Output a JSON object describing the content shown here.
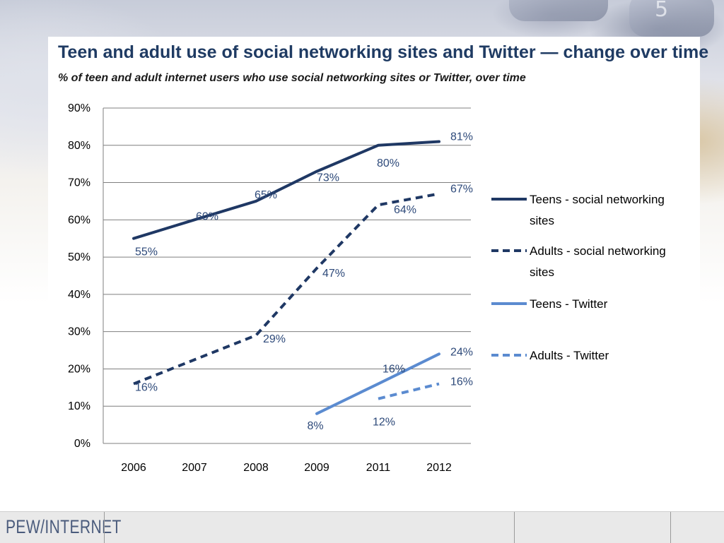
{
  "chart_data": {
    "type": "line",
    "title": "Teen and adult use of social networking sites and Twitter — change over time",
    "subtitle": "% of teen and adult internet users who use social networking sites or Twitter, over time",
    "categories": [
      "2006",
      "2007",
      "2008",
      "2009",
      "2011",
      "2012"
    ],
    "y_ticks": [
      "0%",
      "10%",
      "20%",
      "30%",
      "40%",
      "50%",
      "60%",
      "70%",
      "80%",
      "90%"
    ],
    "ylim": [
      0,
      90
    ],
    "grid": true,
    "legend_position": "right",
    "series": [
      {
        "name": "Teens - social networking sites",
        "legend_lines": [
          "Teens - social networking",
          "sites"
        ],
        "values": [
          55,
          60,
          65,
          73,
          80,
          81
        ],
        "labels": [
          "55%",
          "60%",
          "65%",
          "73%",
          "80%",
          "81%"
        ],
        "color": "#1f3864",
        "dashed": false
      },
      {
        "name": "Adults - social networking sites",
        "legend_lines": [
          "Adults - social networking",
          "sites"
        ],
        "values": [
          16,
          null,
          29,
          47,
          64,
          67
        ],
        "labels": [
          "16%",
          "",
          "29%",
          "47%",
          "64%",
          "67%"
        ],
        "color": "#1f3864",
        "dashed": true
      },
      {
        "name": "Teens - Twitter",
        "legend_lines": [
          "Teens - Twitter"
        ],
        "values": [
          null,
          null,
          null,
          8,
          16,
          24
        ],
        "labels": [
          "",
          "",
          "",
          "8%",
          "16%",
          "24%"
        ],
        "color": "#5b8bd0",
        "dashed": false
      },
      {
        "name": "Adults - Twitter",
        "legend_lines": [
          "Adults - Twitter"
        ],
        "values": [
          null,
          null,
          null,
          null,
          12,
          16
        ],
        "labels": [
          "",
          "",
          "",
          "",
          "12%",
          "16%"
        ],
        "color": "#5b8bd0",
        "dashed": true
      }
    ]
  },
  "footer": {
    "logo_text": "PEW/INTERNET"
  },
  "background": {
    "keypad_digit": "5"
  }
}
